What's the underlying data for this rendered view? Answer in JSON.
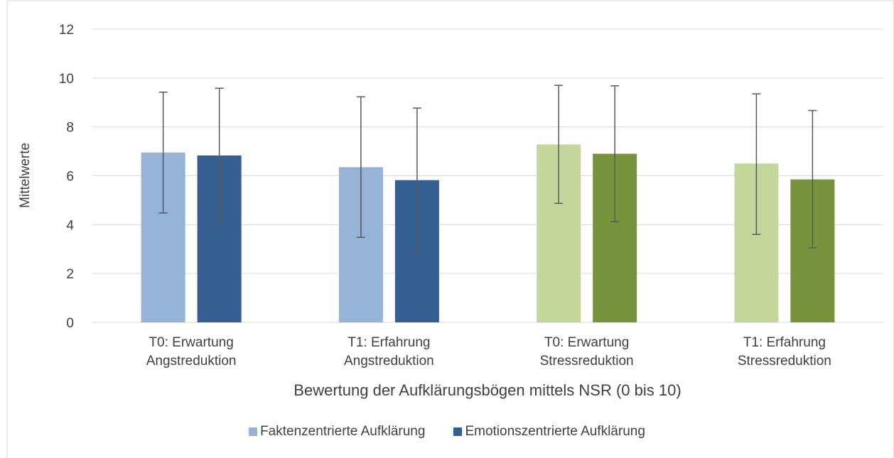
{
  "chart_data": {
    "type": "bar",
    "title": "",
    "xlabel": "Bewertung der Aufklärungsbögen mittels NSR (0 bis 10)",
    "ylabel": "Mittelwerte",
    "ylim": [
      0,
      12
    ],
    "yticks": [
      "0",
      "2",
      "4",
      "6",
      "8",
      "10",
      "12"
    ],
    "grid": true,
    "legend_position": "bottom",
    "categories": [
      [
        "T0: Erwartung",
        "Angstreduktion"
      ],
      [
        "T1: Erfahrung",
        "Angstreduktion"
      ],
      [
        "T0: Erwartung",
        "Stressreduktion"
      ],
      [
        "T1: Erfahrung",
        "Stressreduktion"
      ]
    ],
    "series": [
      {
        "name": "Faktenzentrierte Aufklärung",
        "values": [
          6.95,
          6.35,
          7.28,
          6.5
        ],
        "error_low": [
          4.48,
          3.48,
          4.87,
          3.6
        ],
        "error_high": [
          9.42,
          9.23,
          9.7,
          9.35
        ],
        "colors": [
          "#95b3d7",
          "#95b3d7",
          "#c3d69b",
          "#c3d69b"
        ]
      },
      {
        "name": "Emotionszentrierte Aufklärung",
        "values": [
          6.83,
          5.82,
          6.9,
          5.85
        ],
        "error_low": [
          4.08,
          2.87,
          4.12,
          3.05
        ],
        "error_high": [
          9.58,
          8.77,
          9.68,
          8.67
        ],
        "colors": [
          "#355e91",
          "#355e91",
          "#77933c",
          "#77933c"
        ]
      }
    ],
    "legend_colors": [
      "#95b3d7",
      "#355e91"
    ]
  }
}
